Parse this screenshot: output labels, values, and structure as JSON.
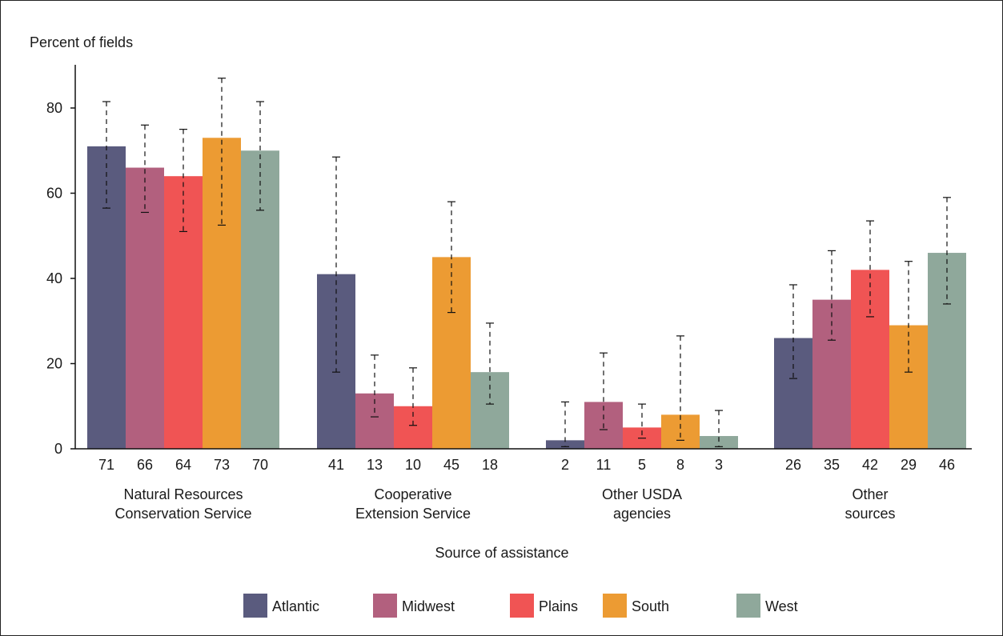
{
  "chart_data": {
    "type": "bar",
    "ylabel": "Percent of fields",
    "xlabel": "Source of assistance",
    "ylim": [
      0,
      90
    ],
    "yticks": [
      0,
      20,
      40,
      60,
      80
    ],
    "grid": false,
    "legend_position": "bottom",
    "categories": [
      [
        "Natural Resources",
        "Conservation Service"
      ],
      [
        "Cooperative",
        "Extension Service"
      ],
      [
        "Other USDA",
        "agencies"
      ],
      [
        "Other",
        "sources"
      ]
    ],
    "series": [
      {
        "name": "Atlantic",
        "color": "#5a5b7e",
        "values": [
          71,
          41,
          2,
          26
        ],
        "error_low": [
          56.5,
          18,
          0.5,
          16.5
        ],
        "error_high": [
          81.5,
          68.5,
          11,
          38.5
        ]
      },
      {
        "name": "Midwest",
        "color": "#b2607e",
        "values": [
          66,
          13,
          11,
          35
        ],
        "error_low": [
          55.5,
          7.5,
          4.5,
          25.5
        ],
        "error_high": [
          76,
          22,
          22.5,
          46.5
        ]
      },
      {
        "name": "Plains",
        "color": "#f05454",
        "values": [
          64,
          10,
          5,
          42
        ],
        "error_low": [
          51,
          5.5,
          2.5,
          31
        ],
        "error_high": [
          75,
          19,
          10.5,
          53.5
        ]
      },
      {
        "name": "South",
        "color": "#ec9b33",
        "values": [
          73,
          45,
          8,
          29
        ],
        "error_low": [
          52.5,
          32,
          2,
          18
        ],
        "error_high": [
          87,
          58,
          26.5,
          44
        ]
      },
      {
        "name": "West",
        "color": "#8fa89b",
        "values": [
          70,
          18,
          3,
          46
        ],
        "error_low": [
          56,
          10.5,
          0.5,
          34
        ],
        "error_high": [
          81.5,
          29.5,
          9,
          59
        ]
      }
    ]
  }
}
